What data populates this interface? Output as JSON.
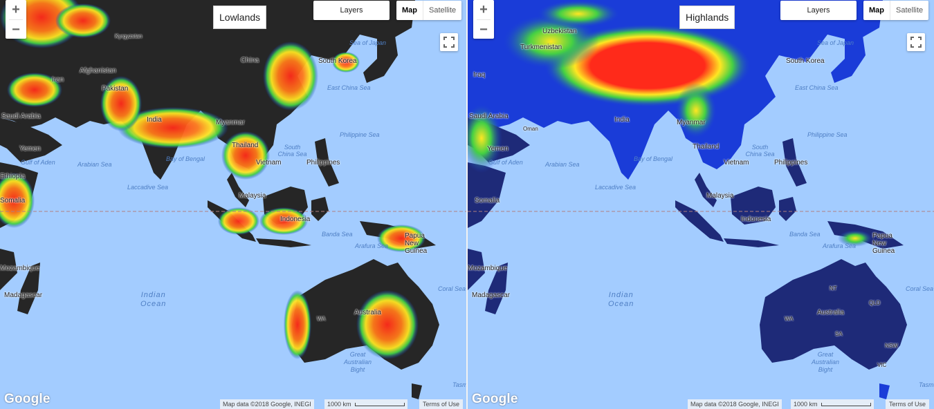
{
  "maps": [
    {
      "title": "Lowlands",
      "layers_label": "Layers",
      "map_types": [
        "Map",
        "Satellite"
      ],
      "selected_map_type": "Map",
      "zoom_in": "+",
      "zoom_out": "−",
      "logo": "Google",
      "attribution": "Map data ©2018 Google, INEGI",
      "scale": "1000 km",
      "terms": "Terms of Use",
      "labels": [
        "China",
        "Afghanistan",
        "Iran",
        "Saudi Arabia",
        "Yemen",
        "Kyrgyzstan",
        "India",
        "South Korea",
        "Vietnam",
        "Philippines",
        "Malaysia",
        "Indonesia",
        "Papua New Guinea",
        "Australia",
        "WA",
        "Madagascar",
        "Mozambique",
        "Somalia",
        "Ethiopia",
        "Pakistan",
        "Myanmar",
        "Thailand"
      ],
      "seas": [
        "Sea of Japan",
        "East China Sea",
        "Philippine Sea",
        "South China Sea",
        "Bay of Bengal",
        "Arabian Sea",
        "Laccadive Sea",
        "Gulf of Aden",
        "Banda Sea",
        "Arafura Sea",
        "Coral Sea",
        "Great Australian Bight",
        "Tasman Sea"
      ],
      "ocean": [
        "Indian",
        "Ocean"
      ]
    },
    {
      "title": "Highlands",
      "layers_label": "Layers",
      "map_types": [
        "Map",
        "Satellite"
      ],
      "selected_map_type": "Map",
      "zoom_in": "+",
      "zoom_out": "−",
      "logo": "Google",
      "attribution": "Map data ©2018 Google, INEGI",
      "scale": "1000 km",
      "terms": "Terms of Use",
      "labels": [
        "Uzbekistan",
        "Turkmenistan",
        "Iraq",
        "Saudi Arabia",
        "Yemen",
        "India",
        "South Korea",
        "Vietnam",
        "Philippines",
        "Malaysia",
        "Indonesia",
        "Papua New Guinea",
        "Australia",
        "WA",
        "NT",
        "QLD",
        "SA",
        "NSW",
        "VIC",
        "Madagascar",
        "Mozambique",
        "Somalia",
        "Oman",
        "Thailand",
        "Myanmar"
      ],
      "seas": [
        "Sea of Japan",
        "East China Sea",
        "Philippine Sea",
        "South China Sea",
        "Bay of Bengal",
        "Arabian Sea",
        "Laccadive Sea",
        "Gulf of Aden",
        "Banda Sea",
        "Arafura Sea",
        "Coral Sea",
        "Great Australian Bight",
        "Tasman Sea"
      ],
      "ocean": [
        "Indian",
        "Ocean"
      ]
    }
  ],
  "colors": {
    "water": "#a3ccff",
    "land_dark": "#262626",
    "red": "#ff2a1a",
    "orange": "#ff9a1a",
    "yellow": "#ffee22",
    "green": "#44d044",
    "blue": "#1a3cd8",
    "navy": "#1e2a78"
  }
}
